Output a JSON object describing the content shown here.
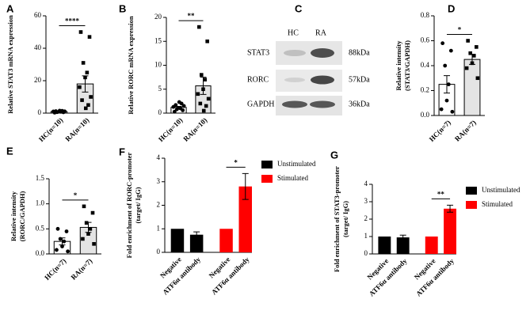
{
  "chart_data": [
    {
      "type": "bar",
      "label": "A",
      "ylabel": [
        "Relative STAT3 mRNA expression"
      ],
      "categories": [
        "HC(n=10)",
        "RA(n=10)"
      ],
      "values": [
        1,
        18
      ],
      "errors": [
        0.3,
        5
      ],
      "points": [
        [
          0.3,
          0.5,
          0.6,
          0.8,
          0.9,
          1,
          1.1,
          1.2,
          1.4,
          1.5
        ],
        [
          50,
          47,
          31,
          25,
          22,
          16,
          10,
          8,
          5,
          3
        ]
      ],
      "markers": [
        "circle",
        "square"
      ],
      "colors": [
        "#ffffff",
        "#e4e4e4"
      ],
      "ylim": [
        0,
        60
      ],
      "yticks": [
        0,
        20,
        40,
        60
      ],
      "significance": "****"
    },
    {
      "type": "bar",
      "label": "B",
      "ylabel": [
        "Relative RORC mRNA expression"
      ],
      "categories": [
        "HC(n=10)",
        "RA(n=10)"
      ],
      "values": [
        1.2,
        5.7
      ],
      "errors": [
        0.2,
        1.8
      ],
      "points": [
        [
          0.3,
          0.6,
          0.8,
          1,
          1.1,
          1.3,
          1.5,
          1.7,
          2,
          2.3
        ],
        [
          18,
          15,
          8,
          7,
          5,
          4,
          3,
          2,
          1.5,
          0.5
        ]
      ],
      "markers": [
        "circle",
        "square"
      ],
      "colors": [
        "#ffffff",
        "#e4e4e4"
      ],
      "ylim": [
        0,
        20
      ],
      "yticks": [
        0,
        5,
        10,
        15,
        20
      ],
      "significance": "**"
    },
    {
      "type": "bar",
      "label": "D",
      "ylabel": [
        "Relative intensity",
        "(STAT3/GAPDH)"
      ],
      "categories": [
        "HC(n=7)",
        "RA(n=7)"
      ],
      "values": [
        0.25,
        0.45
      ],
      "errors": [
        0.07,
        0.04
      ],
      "points": [
        [
          0.58,
          0.52,
          0.4,
          0.25,
          0.12,
          0.05,
          0.03
        ],
        [
          0.6,
          0.55,
          0.5,
          0.48,
          0.42,
          0.38,
          0.3
        ]
      ],
      "markers": [
        "circle",
        "square"
      ],
      "colors": [
        "#ffffff",
        "#e4e4e4"
      ],
      "ylim": [
        0,
        0.8
      ],
      "yticks": [
        {
          "value": 0,
          "label": "0.0"
        },
        0.2,
        0.4,
        0.6,
        0.8
      ],
      "significance": "*"
    },
    {
      "type": "bar",
      "label": "E",
      "ylabel": [
        "Relative intensity",
        "(RORC/GAPDH)"
      ],
      "categories": [
        "HC(n=7)",
        "RA(n=7)"
      ],
      "values": [
        0.25,
        0.53
      ],
      "errors": [
        0.07,
        0.1
      ],
      "points": [
        [
          0.5,
          0.45,
          0.3,
          0.25,
          0.15,
          0.08,
          0.05
        ],
        [
          0.95,
          0.82,
          0.62,
          0.5,
          0.4,
          0.3,
          0.2
        ]
      ],
      "markers": [
        "circle",
        "square"
      ],
      "colors": [
        "#ffffff",
        "#e4e4e4"
      ],
      "ylim": [
        0,
        1.5
      ],
      "yticks": [
        {
          "value": 0,
          "label": "0.0"
        },
        0.5,
        {
          "value": 1,
          "label": "1.0"
        },
        1.5
      ],
      "significance": "*"
    },
    {
      "type": "grouped_bar",
      "label": "F",
      "ylabel": [
        "Fold enrichment of RORC-promoter",
        "(target/ IgG)"
      ],
      "categories": [
        "Negative",
        "ATF6α antibody"
      ],
      "series": [
        {
          "name": "Unstimulated",
          "color": "#000000",
          "values": [
            1,
            0.75
          ],
          "errors": [
            0,
            0.12
          ]
        },
        {
          "name": "Stimulated",
          "color": "#ff0000",
          "values": [
            1,
            2.8
          ],
          "errors": [
            0,
            0.55
          ]
        }
      ],
      "ylim": [
        0,
        4
      ],
      "yticks": [
        0,
        1,
        2,
        3,
        4
      ],
      "legend": "right",
      "significance": "*"
    },
    {
      "type": "grouped_bar",
      "label": "G",
      "ylabel": [
        "Fold enrichment of STAT3-promoter",
        "(target/ IgG)"
      ],
      "categories": [
        "Negative",
        "ATF6α antibody"
      ],
      "series": [
        {
          "name": "Unstimulated",
          "color": "#000000",
          "values": [
            1,
            0.95
          ],
          "errors": [
            0,
            0.13
          ]
        },
        {
          "name": "Stimulated",
          "color": "#ff0000",
          "values": [
            1,
            2.6
          ],
          "errors": [
            0,
            0.2
          ]
        }
      ],
      "ylim": [
        0,
        4
      ],
      "yticks": [
        0,
        1,
        2,
        3,
        4
      ],
      "legend": "right",
      "significance": "**"
    }
  ],
  "blot": {
    "label": "C",
    "lanes": [
      "HC",
      "RA"
    ],
    "rows": [
      {
        "name": "STAT3",
        "size": "88kDa"
      },
      {
        "name": "RORC",
        "size": "57kDa"
      },
      {
        "name": "GAPDH",
        "size": "36kDa"
      }
    ]
  }
}
